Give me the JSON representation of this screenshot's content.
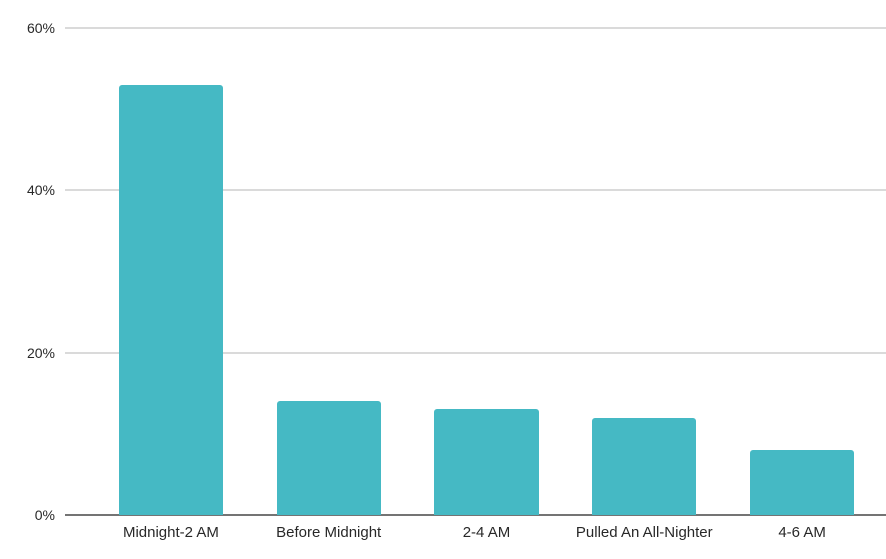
{
  "chart_data": {
    "type": "bar",
    "title": "",
    "xlabel": "",
    "ylabel": "",
    "categories": [
      "Midnight-2 AM",
      "Before Midnight",
      "2-4 AM",
      "Pulled An All-Nighter",
      "4-6 AM"
    ],
    "values": [
      53,
      14,
      13,
      12,
      8
    ],
    "ylim": [
      0,
      60
    ],
    "yticks": [
      {
        "value": 0,
        "label": "0%"
      },
      {
        "value": 20,
        "label": "20%"
      },
      {
        "value": 40,
        "label": "40%"
      },
      {
        "value": 60,
        "label": "60%"
      }
    ],
    "grid": true,
    "legend_position": "none",
    "colors": {
      "bar": "#45b9c4",
      "gridline": "#dadada",
      "baseline": "#747474",
      "text": "#282828"
    }
  }
}
